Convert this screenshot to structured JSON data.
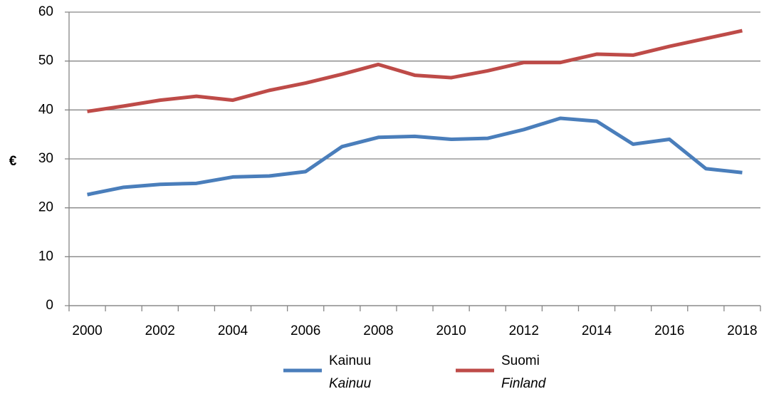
{
  "chart_data": {
    "type": "line",
    "y_label": "€",
    "categories": [
      "2000",
      null,
      "2002",
      null,
      "2004",
      null,
      "2006",
      null,
      "2008",
      null,
      "2010",
      null,
      "2012",
      null,
      "2014",
      null,
      "2016",
      null,
      "2018"
    ],
    "series": [
      {
        "name": "Kainuu",
        "name_en": "Kainuu",
        "color": "#4a7ebb",
        "values": [
          22.7,
          24.2,
          24.8,
          25.0,
          26.3,
          26.5,
          27.4,
          32.5,
          34.4,
          34.6,
          34.0,
          34.2,
          36.0,
          38.3,
          37.7,
          33.0,
          34.0,
          28.0,
          27.2
        ]
      },
      {
        "name": "Suomi",
        "name_en": "Finland",
        "color": "#be4b48",
        "values": [
          39.7,
          40.8,
          42.0,
          42.8,
          42.0,
          44.0,
          45.5,
          47.3,
          49.3,
          47.1,
          46.6,
          48.0,
          49.7,
          49.7,
          51.4,
          51.2,
          53.0,
          54.6,
          56.2
        ]
      }
    ],
    "ylim": [
      0,
      60
    ],
    "yticks": [
      0,
      10,
      20,
      30,
      40,
      50,
      60
    ],
    "grid": true
  }
}
